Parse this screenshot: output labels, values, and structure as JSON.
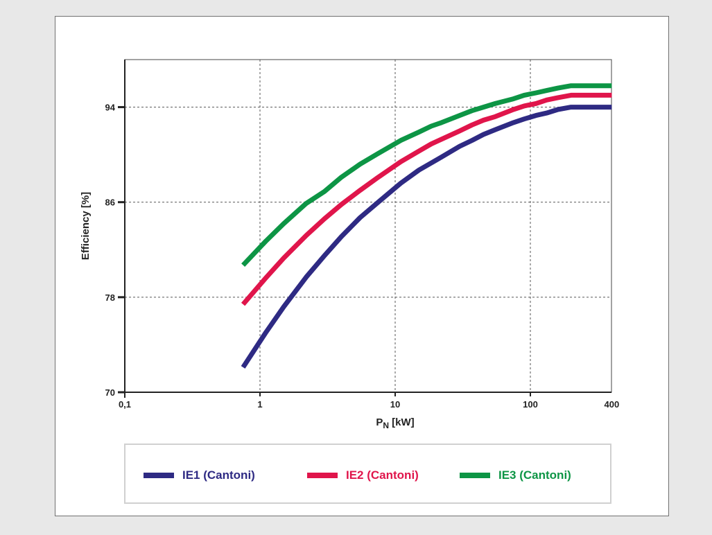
{
  "chart_data": {
    "type": "line",
    "xlabel_main": "P",
    "xlabel_sub": "N",
    "xlabel_unit": " [kW]",
    "ylabel": "Efficiency [%]",
    "xscale": "log",
    "xlim": [
      0.1,
      400
    ],
    "ylim": [
      70,
      98
    ],
    "xticks": [
      0.1,
      1,
      10,
      100,
      400
    ],
    "xtick_labels": [
      "0,1",
      "1",
      "10",
      "100",
      "400"
    ],
    "yticks": [
      70,
      78,
      86,
      94
    ],
    "ytick_labels": [
      "70",
      "78",
      "86",
      "94"
    ],
    "grid": true,
    "legend_position": "bottom",
    "series": [
      {
        "name": "IE1 (Cantoni)",
        "color": "#2e2a83",
        "x": [
          0.75,
          1.1,
          1.5,
          2.2,
          3,
          4,
          5.5,
          7.5,
          11,
          15,
          18.5,
          22,
          30,
          37,
          45,
          55,
          75,
          90,
          110,
          132,
          160,
          200,
          250,
          315,
          355,
          400
        ],
        "y": [
          72.1,
          75.0,
          77.2,
          79.7,
          81.5,
          83.1,
          84.7,
          86.0,
          87.6,
          88.7,
          89.3,
          89.8,
          90.7,
          91.2,
          91.7,
          92.1,
          92.7,
          93.0,
          93.3,
          93.5,
          93.8,
          94.0,
          94.0,
          94.0,
          94.0,
          94.0
        ]
      },
      {
        "name": "IE2 (Cantoni)",
        "color": "#e0154b",
        "x": [
          0.75,
          1.1,
          1.5,
          2.2,
          3,
          4,
          5.5,
          7.5,
          11,
          15,
          18.5,
          22,
          30,
          37,
          45,
          55,
          75,
          90,
          110,
          132,
          160,
          200,
          250,
          315,
          355,
          400
        ],
        "y": [
          77.4,
          79.6,
          81.3,
          83.2,
          84.6,
          85.8,
          87.0,
          88.1,
          89.4,
          90.3,
          90.9,
          91.3,
          92.0,
          92.5,
          92.9,
          93.2,
          93.8,
          94.1,
          94.3,
          94.6,
          94.8,
          95.0,
          95.0,
          95.0,
          95.0,
          95.0
        ]
      },
      {
        "name": "IE3 (Cantoni)",
        "color": "#0d9545",
        "x": [
          0.75,
          1.1,
          1.5,
          2.2,
          3,
          4,
          5.5,
          7.5,
          11,
          15,
          18.5,
          22,
          30,
          37,
          45,
          55,
          75,
          90,
          110,
          132,
          160,
          200,
          250,
          315,
          355,
          400
        ],
        "y": [
          80.7,
          82.7,
          84.2,
          85.9,
          86.9,
          88.1,
          89.2,
          90.1,
          91.2,
          91.9,
          92.4,
          92.7,
          93.3,
          93.7,
          94.0,
          94.3,
          94.7,
          95.0,
          95.2,
          95.4,
          95.6,
          95.8,
          95.8,
          95.8,
          95.8,
          95.8
        ]
      }
    ]
  }
}
